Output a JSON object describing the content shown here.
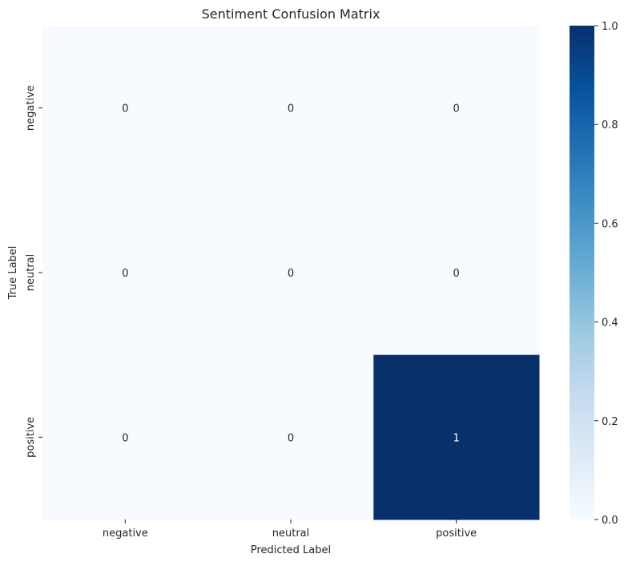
{
  "chart_data": {
    "type": "heatmap",
    "title": "Sentiment Confusion Matrix",
    "xlabel": "Predicted Label",
    "ylabel": "True Label",
    "x_categories": [
      "negative",
      "neutral",
      "positive"
    ],
    "y_categories": [
      "negative",
      "neutral",
      "positive"
    ],
    "values": [
      [
        0,
        0,
        0
      ],
      [
        0,
        0,
        0
      ],
      [
        0,
        0,
        1
      ]
    ],
    "colormap": "Blues",
    "color_min": "#f7fbff",
    "color_max": "#08306b",
    "colorbar": {
      "range": [
        0,
        1
      ],
      "ticks": [
        "0.0",
        "0.2",
        "0.4",
        "0.6",
        "0.8",
        "1.0"
      ]
    },
    "annotate": true,
    "grid": false
  }
}
